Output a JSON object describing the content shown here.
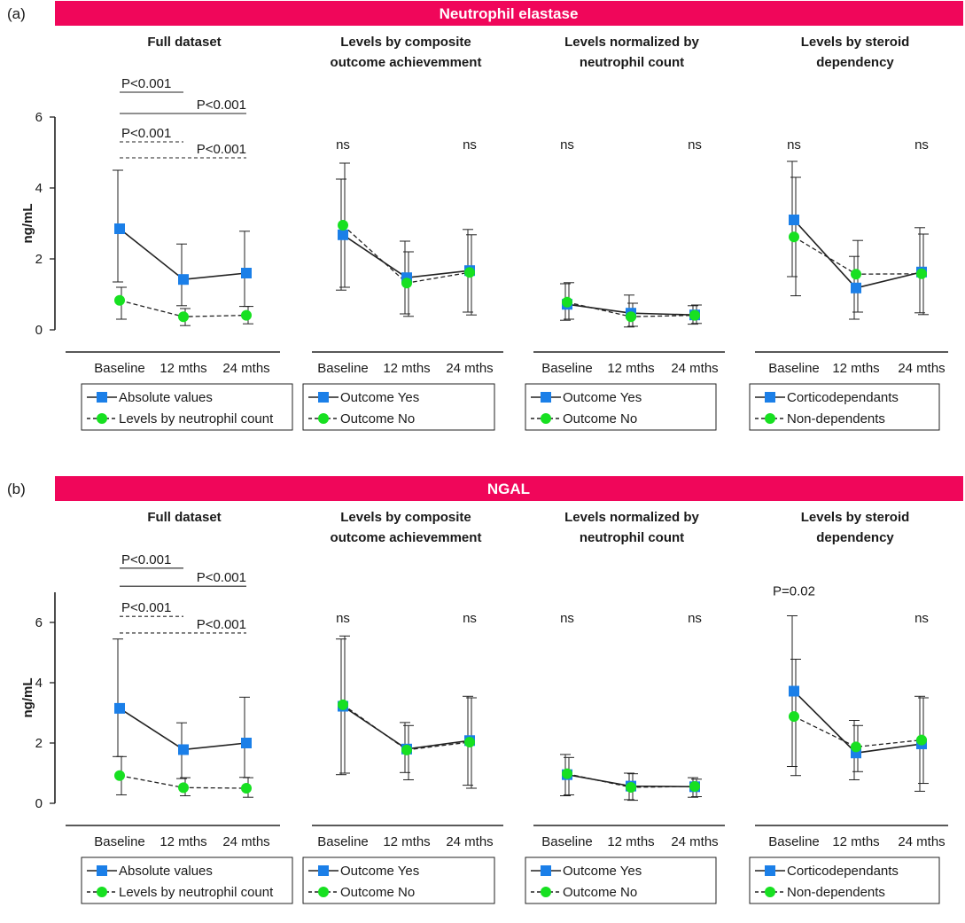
{
  "figure": {
    "panel_a_label": "(a)",
    "panel_b_label": "(b)"
  },
  "colors": {
    "banner": "#f0065a",
    "series_yes": "#1b7fe8",
    "series_no": "#17e021",
    "axis": "#222222"
  },
  "icons": {
    "square_marker": "blue-square-marker",
    "circle_marker": "green-circle-marker"
  },
  "chart_data": [
    {
      "id": "a",
      "type": "line",
      "panel_label": "(a)",
      "banner": "Neutrophil elastase",
      "ylabel": "ng/mL",
      "ylim": [
        0,
        6
      ],
      "yticks": [
        0,
        2,
        4,
        6
      ],
      "categories": [
        "Baseline",
        "12 mths",
        "24 mths"
      ],
      "subplots": [
        {
          "title": [
            "Full dataset"
          ],
          "series": [
            {
              "name": "Absolute values",
              "style": "solid",
              "marker": "square",
              "values": [
                2.85,
                1.42,
                1.6
              ],
              "err_low": [
                1.35,
                0.68,
                0.66
              ],
              "err_high": [
                4.5,
                2.42,
                2.78
              ]
            },
            {
              "name": "Levels by neutrophil count",
              "style": "dashed",
              "marker": "circle",
              "values": [
                0.83,
                0.37,
                0.41
              ],
              "err_low": [
                0.3,
                0.12,
                0.17
              ],
              "err_high": [
                1.2,
                0.6,
                0.66
              ]
            }
          ],
          "annotations": [
            {
              "text": "P<0.001",
              "from": 0,
              "to": 1,
              "level": 6.7,
              "style": "solid"
            },
            {
              "text": "P<0.001",
              "from": 0,
              "to": 2,
              "level": 6.1,
              "style": "solid"
            },
            {
              "text": "P<0.001",
              "from": 0,
              "to": 1,
              "level": 5.3,
              "style": "dashed"
            },
            {
              "text": "P<0.001",
              "from": 0,
              "to": 2,
              "level": 4.85,
              "style": "dashed"
            }
          ]
        },
        {
          "title": [
            "Levels by composite",
            "outcome achievemment"
          ],
          "series": [
            {
              "name": "Outcome Yes",
              "style": "solid",
              "marker": "square",
              "values": [
                2.68,
                1.47,
                1.67
              ],
              "err_low": [
                1.12,
                0.45,
                0.5
              ],
              "err_high": [
                4.25,
                2.5,
                2.83
              ]
            },
            {
              "name": "Outcome No",
              "style": "dashed",
              "marker": "circle",
              "values": [
                2.95,
                1.32,
                1.62
              ],
              "err_low": [
                1.2,
                0.38,
                0.42
              ],
              "err_high": [
                4.7,
                2.2,
                2.68
              ]
            }
          ],
          "annotations": [
            {
              "text": "ns",
              "at": 0,
              "level": 5.1
            },
            {
              "text": "ns",
              "at": 2,
              "level": 5.1
            }
          ]
        },
        {
          "title": [
            "Levels normalized by",
            "neutrophil count"
          ],
          "series": [
            {
              "name": "Outcome Yes",
              "style": "solid",
              "marker": "square",
              "values": [
                0.72,
                0.47,
                0.42
              ],
              "err_low": [
                0.27,
                0.08,
                0.16
              ],
              "err_high": [
                1.3,
                0.98,
                0.68
              ]
            },
            {
              "name": "Outcome No",
              "style": "dashed",
              "marker": "circle",
              "values": [
                0.78,
                0.37,
                0.41
              ],
              "err_low": [
                0.3,
                0.1,
                0.18
              ],
              "err_high": [
                1.33,
                0.75,
                0.7
              ]
            }
          ],
          "annotations": [
            {
              "text": "ns",
              "at": 0,
              "level": 5.1
            },
            {
              "text": "ns",
              "at": 2,
              "level": 5.1
            }
          ]
        },
        {
          "title": [
            "Levels by steroid",
            "dependency"
          ],
          "series": [
            {
              "name": "Corticodependants",
              "style": "solid",
              "marker": "square",
              "values": [
                3.1,
                1.18,
                1.63
              ],
              "err_low": [
                1.5,
                0.3,
                0.48
              ],
              "err_high": [
                4.75,
                2.07,
                2.88
              ]
            },
            {
              "name": "Non-dependents",
              "style": "dashed",
              "marker": "circle",
              "values": [
                2.62,
                1.57,
                1.58
              ],
              "err_low": [
                0.96,
                0.5,
                0.43
              ],
              "err_high": [
                4.3,
                2.52,
                2.7
              ]
            }
          ],
          "annotations": [
            {
              "text": "ns",
              "at": 0,
              "level": 5.1
            },
            {
              "text": "ns",
              "at": 2,
              "level": 5.1
            }
          ]
        }
      ]
    },
    {
      "id": "b",
      "type": "line",
      "panel_label": "(b)",
      "banner": "NGAL",
      "ylabel": "ng/mL",
      "ylim": [
        0,
        7
      ],
      "yticks": [
        0,
        2,
        4,
        6
      ],
      "categories": [
        "Baseline",
        "12 mths",
        "24 mths"
      ],
      "subplots": [
        {
          "title": [
            "Full dataset"
          ],
          "series": [
            {
              "name": "Absolute values",
              "style": "solid",
              "marker": "square",
              "values": [
                3.15,
                1.78,
                2.0
              ],
              "err_low": [
                1.55,
                0.82,
                0.86
              ],
              "err_high": [
                5.45,
                2.67,
                3.52
              ]
            },
            {
              "name": "Levels by neutrophil count",
              "style": "dashed",
              "marker": "circle",
              "values": [
                0.92,
                0.52,
                0.5
              ],
              "err_low": [
                0.28,
                0.25,
                0.2
              ],
              "err_high": [
                1.55,
                0.85,
                0.85
              ]
            }
          ],
          "annotations": [
            {
              "text": "P<0.001",
              "from": 0,
              "to": 1,
              "level": 7.8,
              "style": "solid"
            },
            {
              "text": "P<0.001",
              "from": 0,
              "to": 2,
              "level": 7.2,
              "style": "solid"
            },
            {
              "text": "P<0.001",
              "from": 0,
              "to": 1,
              "level": 6.2,
              "style": "dashed"
            },
            {
              "text": "P<0.001",
              "from": 0,
              "to": 2,
              "level": 5.65,
              "style": "dashed"
            }
          ]
        },
        {
          "title": [
            "Levels by composite",
            "outcome achievemment"
          ],
          "series": [
            {
              "name": "Outcome Yes",
              "style": "solid",
              "marker": "square",
              "values": [
                3.22,
                1.8,
                2.08
              ],
              "err_low": [
                0.95,
                1.02,
                0.6
              ],
              "err_high": [
                5.45,
                2.68,
                3.55
              ]
            },
            {
              "name": "Outcome No",
              "style": "dashed",
              "marker": "circle",
              "values": [
                3.27,
                1.77,
                2.03
              ],
              "err_low": [
                1.0,
                0.78,
                0.5
              ],
              "err_high": [
                5.55,
                2.58,
                3.5
              ]
            }
          ],
          "annotations": [
            {
              "text": "ns",
              "at": 0,
              "level": 6.0
            },
            {
              "text": "ns",
              "at": 2,
              "level": 6.0
            }
          ]
        },
        {
          "title": [
            "Levels normalized by",
            "neutrophil count"
          ],
          "series": [
            {
              "name": "Outcome Yes",
              "style": "solid",
              "marker": "square",
              "values": [
                0.95,
                0.57,
                0.55
              ],
              "err_low": [
                0.25,
                0.12,
                0.2
              ],
              "err_high": [
                1.62,
                1.0,
                0.85
              ]
            },
            {
              "name": "Outcome No",
              "style": "dashed",
              "marker": "circle",
              "values": [
                0.98,
                0.53,
                0.56
              ],
              "err_low": [
                0.28,
                0.1,
                0.22
              ],
              "err_high": [
                1.52,
                0.98,
                0.8
              ]
            }
          ],
          "annotations": [
            {
              "text": "ns",
              "at": 0,
              "level": 6.0
            },
            {
              "text": "ns",
              "at": 2,
              "level": 6.0
            }
          ]
        },
        {
          "title": [
            "Levels by steroid",
            "dependency"
          ],
          "series": [
            {
              "name": "Corticodependants",
              "style": "solid",
              "marker": "square",
              "values": [
                3.72,
                1.67,
                1.97
              ],
              "err_low": [
                1.22,
                0.78,
                0.4
              ],
              "err_high": [
                6.22,
                2.75,
                3.55
              ]
            },
            {
              "name": "Non-dependents",
              "style": "dashed",
              "marker": "circle",
              "values": [
                2.88,
                1.87,
                2.1
              ],
              "err_low": [
                0.92,
                1.05,
                0.66
              ],
              "err_high": [
                4.78,
                2.58,
                3.5
              ]
            }
          ],
          "annotations": [
            {
              "text": "P=0.02",
              "at": 0,
              "level": 6.9
            },
            {
              "text": "ns",
              "at": 2,
              "level": 6.0
            }
          ]
        }
      ]
    }
  ]
}
